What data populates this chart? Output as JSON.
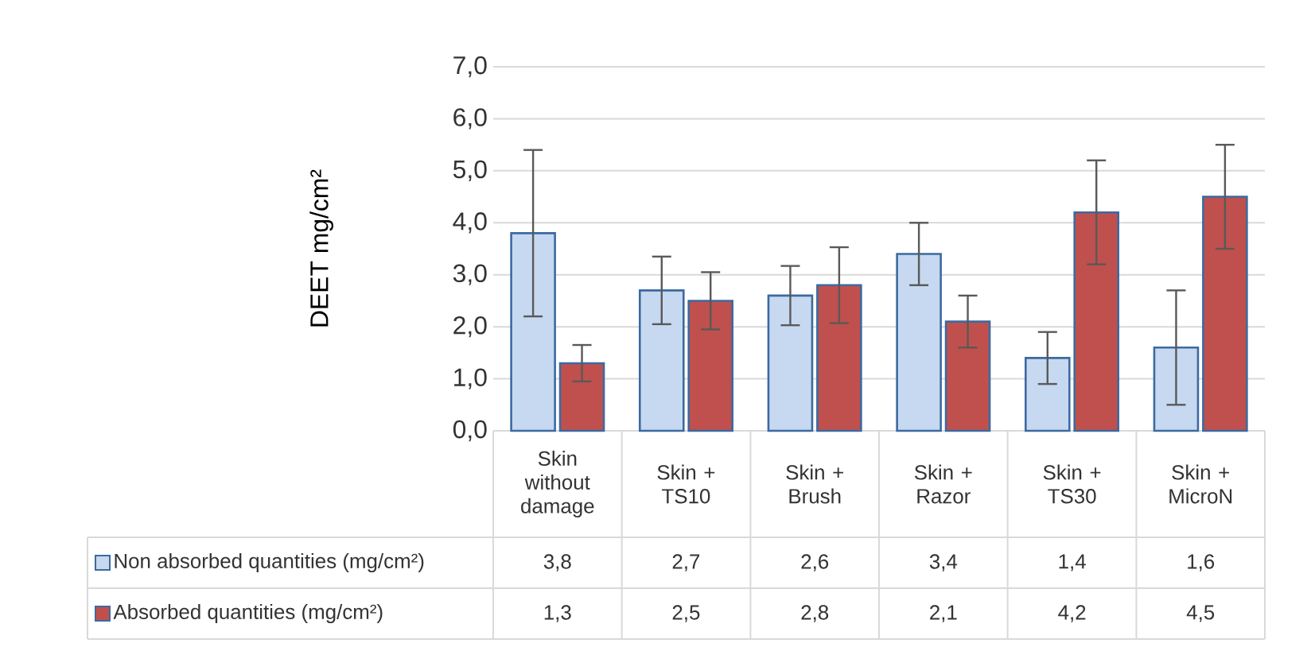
{
  "chart_data": {
    "type": "bar",
    "ylabel": "DEET mg/cm²",
    "categories": [
      "Skin without damage",
      "Skin + TS10",
      "Skin + Brush",
      "Skin + Razor",
      "Skin + TS30",
      "Skin + MicroN"
    ],
    "series": [
      {
        "name": "Non absorbed quantities (mg/cm²)",
        "color": "#c6d9f0",
        "values": [
          3.8,
          2.7,
          2.6,
          3.4,
          1.4,
          1.6
        ],
        "errors": [
          1.6,
          0.65,
          0.57,
          0.6,
          0.5,
          1.1
        ],
        "value_labels": [
          "3,8",
          "2,7",
          "2,6",
          "3,4",
          "1,4",
          "1,6"
        ]
      },
      {
        "name": "Absorbed quantities (mg/cm²)",
        "color": "#c0504d",
        "values": [
          1.3,
          2.5,
          2.8,
          2.1,
          4.2,
          4.5
        ],
        "errors": [
          0.35,
          0.55,
          0.73,
          0.5,
          1.0,
          1.0
        ],
        "value_labels": [
          "1,3",
          "2,5",
          "2,8",
          "2,1",
          "4,2",
          "4,5"
        ]
      }
    ],
    "ylim": [
      0,
      7
    ],
    "yticks": [
      {
        "value": 0,
        "label": "0,0"
      },
      {
        "value": 1,
        "label": "1,0"
      },
      {
        "value": 2,
        "label": "2,0"
      },
      {
        "value": 3,
        "label": "3,0"
      },
      {
        "value": 4,
        "label": "4,0"
      },
      {
        "value": 5,
        "label": "5,0"
      },
      {
        "value": 6,
        "label": "6,0"
      },
      {
        "value": 7,
        "label": "7,0"
      }
    ],
    "grid": "y",
    "legend": "bottom"
  }
}
